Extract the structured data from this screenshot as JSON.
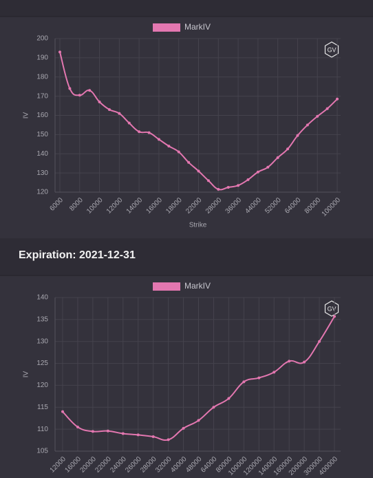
{
  "chart_data": [
    {
      "type": "line",
      "legend": "MarkIV",
      "watermark": "GV",
      "ylabel": "IV",
      "xlabel": "Strike",
      "categories": [
        6000,
        null,
        8000,
        null,
        10000,
        null,
        12000,
        null,
        14000,
        null,
        16000,
        null,
        18000,
        null,
        22000,
        null,
        28000,
        null,
        36000,
        null,
        44000,
        null,
        52000,
        null,
        64000,
        null,
        80000,
        null,
        100000
      ],
      "series": [
        {
          "name": "MarkIV",
          "color": "#e377b0",
          "values": [
            193,
            174,
            170.5,
            173,
            167,
            163,
            161,
            156,
            151.5,
            151,
            147.5,
            144,
            141,
            135.5,
            131,
            126,
            121.5,
            122.5,
            123.5,
            126.5,
            130.5,
            133,
            138,
            142.5,
            149.5,
            155,
            159.5,
            163.5,
            168.5
          ]
        }
      ],
      "ylim": [
        120,
        200
      ],
      "yticks": [
        120,
        130,
        140,
        150,
        160,
        170,
        180,
        190,
        200
      ],
      "grid": true
    },
    {
      "type": "line",
      "heading": "Expiration: 2021-12-31",
      "legend": "MarkIV",
      "watermark": "GV",
      "ylabel": "IV",
      "categories": [
        12000,
        16000,
        20000,
        22000,
        24000,
        26000,
        28000,
        32000,
        40000,
        48000,
        64000,
        80000,
        100000,
        120000,
        140000,
        160000,
        200000,
        300000,
        400000
      ],
      "series": [
        {
          "name": "MarkIV",
          "color": "#e377b0",
          "values": [
            114,
            110.5,
            109.5,
            109.6,
            109,
            108.7,
            108.3,
            107.6,
            110.2,
            112,
            115,
            117,
            120.8,
            121.7,
            123,
            125.5,
            125.3,
            130,
            135.7
          ]
        }
      ],
      "ylim": [
        105,
        140
      ],
      "yticks": [
        105,
        110,
        115,
        120,
        125,
        130,
        135,
        140
      ],
      "grid": true
    }
  ]
}
